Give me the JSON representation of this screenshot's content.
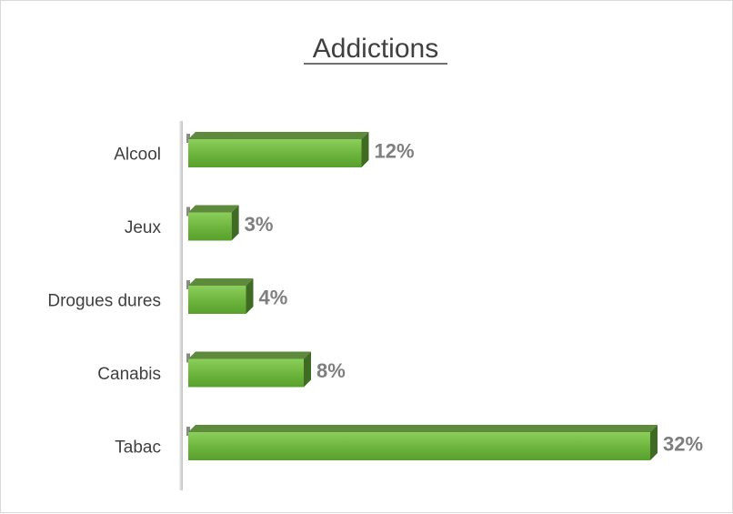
{
  "chart_data": {
    "type": "bar",
    "orientation": "horizontal",
    "title": "Addictions",
    "categories": [
      "Alcool",
      "Jeux",
      "Drogues dures",
      "Canabis",
      "Tabac"
    ],
    "values": [
      12,
      3,
      4,
      8,
      32
    ],
    "value_labels": [
      "12%",
      "3%",
      "4%",
      "8%",
      "32%"
    ],
    "xlim": [
      0,
      32
    ],
    "grid": false,
    "legend": "none",
    "bar_color": "#70ad47",
    "value_label_color": "#7f7f7f",
    "highlight_color": "#ff0000",
    "highlight_index": 4
  }
}
